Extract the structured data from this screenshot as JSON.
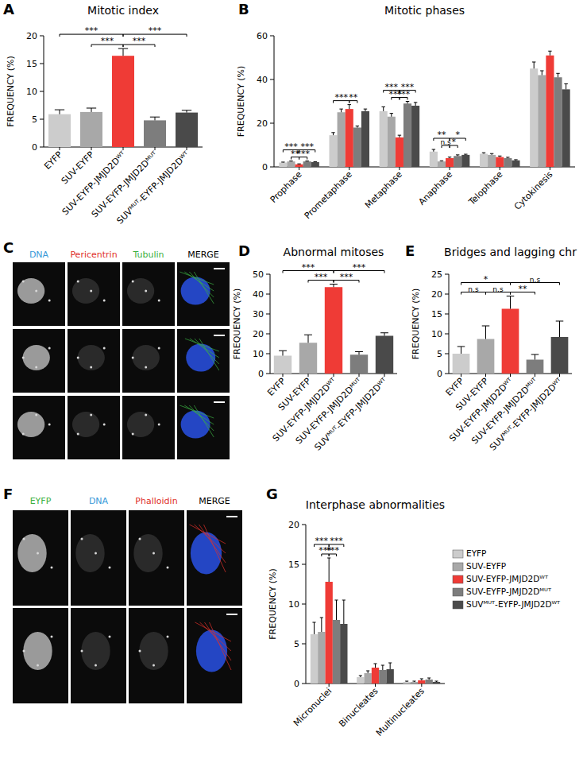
{
  "chart_data": [
    {
      "type": "bar",
      "panel": "A",
      "title": "Mitotic index",
      "y_label": "FREQUENCY (%)",
      "categories": [
        "EYFP",
        "SUV-EYFP",
        "SUV-EYFP-JMJD2Dᵂᵀ",
        "SUV-EYFP-JMJD2Dᴹᵁᵀ",
        "SUVᴹᵁᵀ-EYFP-JMJD2Dᵂᵀ"
      ],
      "values": [
        5.9,
        6.3,
        16.4,
        4.8,
        6.2
      ],
      "errors": [
        0.8,
        0.7,
        1.3,
        0.6,
        0.4
      ],
      "colors": [
        "#cccccc",
        "#a8a8a8",
        "#ef3b36",
        "#7d7d7d",
        "#4a4a4a"
      ],
      "ylim": [
        0,
        20
      ],
      "yticks": [
        0,
        5,
        10,
        15,
        20
      ],
      "grid": false,
      "annotations": [
        {
          "from": 1,
          "to": 2,
          "label": "***"
        },
        {
          "from": 2,
          "to": 3,
          "label": "***"
        },
        {
          "from": 0,
          "to": 2,
          "label": "***"
        },
        {
          "from": 2,
          "to": 4,
          "label": "***"
        }
      ]
    },
    {
      "type": "bar",
      "panel": "B",
      "title": "Mitotic phases",
      "y_label": "FREQUENCY (%)",
      "categories": [
        "Prophase",
        "Prometaphase",
        "Metaphase",
        "Anaphase",
        "Telophase",
        "Cytokinesis"
      ],
      "series": [
        {
          "name": "EYFP",
          "color": "#cccccc",
          "values": [
            2,
            14.5,
            25.5,
            7,
            6,
            45
          ],
          "errors": [
            0.2,
            1.2,
            2,
            1,
            0.5,
            3
          ]
        },
        {
          "name": "SUV-EYFP",
          "color": "#a8a8a8",
          "values": [
            2.5,
            25,
            23,
            2.5,
            5.5,
            42
          ],
          "errors": [
            0.2,
            1.5,
            1.5,
            0.3,
            0.6,
            2
          ]
        },
        {
          "name": "SUV-EYFP-JMJD2Dᵂᵀ",
          "color": "#ef3b36",
          "values": [
            1.2,
            26.5,
            13.5,
            4,
            4.5,
            51
          ],
          "errors": [
            0.2,
            2,
            1,
            0.5,
            0.5,
            2
          ]
        },
        {
          "name": "SUV-EYFP-JMJD2Dᴹᵁᵀ",
          "color": "#7d7d7d",
          "values": [
            2.5,
            18,
            29,
            5,
            4,
            41
          ],
          "errors": [
            0.2,
            0.7,
            1,
            0.5,
            0.4,
            1.8
          ]
        },
        {
          "name": "SUVᴹᵁᵀ-EYFP-JMJD2Dᵂᵀ",
          "color": "#4a4a4a",
          "values": [
            2.2,
            25.5,
            28,
            5.5,
            3,
            35.5
          ],
          "errors": [
            0.2,
            1,
            1.5,
            0.3,
            0.3,
            2.5
          ]
        }
      ],
      "ylim": [
        0,
        60
      ],
      "yticks": [
        0,
        20,
        40,
        60
      ],
      "grid": false,
      "annotations": [
        {
          "category": 0,
          "from": 1,
          "to": 2,
          "label": "**"
        },
        {
          "category": 0,
          "from": 2,
          "to": 3,
          "label": "***"
        },
        {
          "category": 0,
          "from": 0,
          "to": 2,
          "label": "***"
        },
        {
          "category": 0,
          "from": 2,
          "to": 4,
          "label": "***"
        },
        {
          "category": 1,
          "from": 0,
          "to": 2,
          "label": "***"
        },
        {
          "category": 1,
          "from": 2,
          "to": 3,
          "label": "**"
        },
        {
          "category": 2,
          "from": 1,
          "to": 2,
          "label": "***"
        },
        {
          "category": 2,
          "from": 2,
          "to": 3,
          "label": "***"
        },
        {
          "category": 2,
          "from": 0,
          "to": 2,
          "label": "***"
        },
        {
          "category": 2,
          "from": 2,
          "to": 4,
          "label": "***"
        },
        {
          "category": 3,
          "from": 1,
          "to": 2,
          "label": "n.s"
        },
        {
          "category": 3,
          "from": 2,
          "to": 3,
          "label": "*"
        },
        {
          "category": 3,
          "from": 0,
          "to": 2,
          "label": "**"
        },
        {
          "category": 3,
          "from": 2,
          "to": 4,
          "label": "*"
        }
      ]
    },
    {
      "type": "bar",
      "panel": "D",
      "title": "Abnormal mitoses",
      "y_label": "FREQUENCY (%)",
      "categories": [
        "EYFP",
        "SUV-EYFP",
        "SUV-EYFP-JMJD2Dᵂᵀ",
        "SUV-EYFP-JMJD2Dᴹᵁᵀ",
        "SUVᴹᵁᵀ-EYFP-JMJD2Dᵂᵀ"
      ],
      "values": [
        9,
        15.5,
        43.5,
        9.5,
        19
      ],
      "errors": [
        2.5,
        4,
        1.5,
        1.5,
        1.5
      ],
      "colors": [
        "#cccccc",
        "#a8a8a8",
        "#ef3b36",
        "#7d7d7d",
        "#4a4a4a"
      ],
      "ylim": [
        0,
        50
      ],
      "yticks": [
        0,
        10,
        20,
        30,
        40,
        50
      ],
      "grid": false,
      "annotations": [
        {
          "from": 1,
          "to": 2,
          "label": "***"
        },
        {
          "from": 2,
          "to": 3,
          "label": "***"
        },
        {
          "from": 0,
          "to": 2,
          "label": "***"
        },
        {
          "from": 2,
          "to": 4,
          "label": "***"
        }
      ]
    },
    {
      "type": "bar",
      "panel": "E",
      "title": "Bridges and lagging chr",
      "y_label": "FREQUENCY (%)",
      "categories": [
        "EYFP",
        "SUV-EYFP",
        "SUV-EYFP-JMJD2Dᵂᵀ",
        "SUV-EYFP-JMJD2Dᴹᵁᵀ",
        "SUVᴹᵁᵀ-EYFP-JMJD2Dᵂᵀ"
      ],
      "values": [
        5,
        8.7,
        16.3,
        3.5,
        9.2
      ],
      "errors": [
        1.8,
        3.3,
        3.2,
        1.3,
        4
      ],
      "colors": [
        "#cccccc",
        "#a8a8a8",
        "#ef3b36",
        "#7d7d7d",
        "#4a4a4a"
      ],
      "ylim": [
        0,
        25
      ],
      "yticks": [
        0,
        5,
        10,
        15,
        20,
        25
      ],
      "grid": false,
      "annotations": [
        {
          "from": 0,
          "to": 1,
          "label": "n.s"
        },
        {
          "from": 1,
          "to": 2,
          "label": "n.s"
        },
        {
          "from": 2,
          "to": 3,
          "label": "**"
        },
        {
          "from": 0,
          "to": 2,
          "label": "*"
        },
        {
          "from": 2,
          "to": 4,
          "label": "n.s"
        }
      ]
    },
    {
      "type": "bar",
      "panel": "G",
      "title": "Interphase abnormalities",
      "y_label": "FREQUENCY (%)",
      "categories": [
        "Micronuclei",
        "Binucleates",
        "Multinucleates"
      ],
      "series": [
        {
          "name": "EYFP",
          "color": "#cccccc",
          "values": [
            6.2,
            0.8,
            0.2
          ],
          "errors": [
            1.5,
            0.2,
            0.1
          ]
        },
        {
          "name": "SUV-EYFP",
          "color": "#a8a8a8",
          "values": [
            6.5,
            1.3,
            0.2
          ],
          "errors": [
            1.8,
            0.3,
            0.1
          ]
        },
        {
          "name": "SUV-EYFP-JMJD2Dᵂᵀ",
          "color": "#ef3b36",
          "values": [
            12.8,
            2,
            0.4
          ],
          "errors": [
            3,
            0.5,
            0.2
          ]
        },
        {
          "name": "SUV-EYFP-JMJD2Dᴹᵁᵀ",
          "color": "#7d7d7d",
          "values": [
            8,
            1.7,
            0.5
          ],
          "errors": [
            2.5,
            0.6,
            0.2
          ]
        },
        {
          "name": "SUVᴹᵁᵀ-EYFP-JMJD2Dᵂᵀ",
          "color": "#4a4a4a",
          "values": [
            7.5,
            1.8,
            0.2
          ],
          "errors": [
            3,
            0.8,
            0.1
          ]
        }
      ],
      "ylim": [
        0,
        20
      ],
      "yticks": [
        0,
        5,
        10,
        15,
        20
      ],
      "grid": false,
      "legend": "right",
      "annotations": [
        {
          "category": 0,
          "from": 1,
          "to": 2,
          "label": "***"
        },
        {
          "category": 0,
          "from": 2,
          "to": 3,
          "label": "***"
        },
        {
          "category": 0,
          "from": 0,
          "to": 2,
          "label": "***"
        },
        {
          "category": 0,
          "from": 2,
          "to": 4,
          "label": "***"
        }
      ]
    }
  ],
  "images": [
    {
      "panel": "C",
      "columns": [
        "DNA",
        "Pericentrin",
        "Tubulin",
        "MERGE"
      ],
      "colors": [
        "#3a9ad9",
        "#e0302a",
        "#3cb043",
        "#000000"
      ],
      "rows": 3
    },
    {
      "panel": "F",
      "columns": [
        "EYFP",
        "DNA",
        "Phalloidin",
        "MERGE"
      ],
      "colors": [
        "#3cb043",
        "#3a9ad9",
        "#e0302a",
        "#000000"
      ],
      "rows": 2
    }
  ]
}
